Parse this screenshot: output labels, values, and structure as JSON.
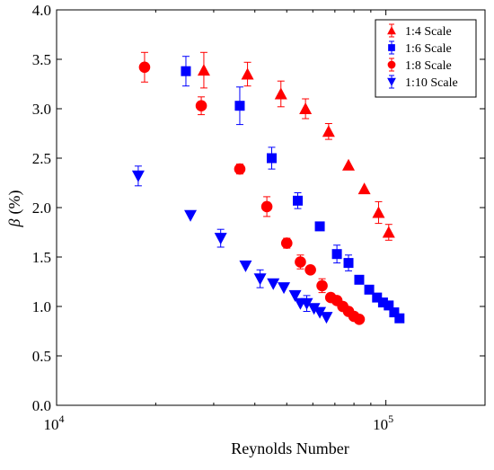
{
  "chart_data": {
    "type": "scatter",
    "xlabel": "Reynolds Number",
    "ylabel_symbol": "β",
    "ylabel_unit": "(%)",
    "xscale": "log",
    "xlim": [
      10000,
      200000
    ],
    "ylim": [
      0,
      4
    ],
    "yticks": [
      0.0,
      0.5,
      1.0,
      1.5,
      2.0,
      2.5,
      3.0,
      3.5,
      4.0
    ],
    "ytick_labels": [
      "0.0",
      "0.5",
      "1.0",
      "1.5",
      "2.0",
      "2.5",
      "3.0",
      "3.5",
      "4.0"
    ],
    "xticks": [
      {
        "value": 10000,
        "base": "10",
        "exp": "4"
      },
      {
        "value": 100000,
        "base": "10",
        "exp": "5"
      }
    ],
    "grid": false,
    "legend_position": "top-right",
    "series": [
      {
        "name": "1:4 Scale",
        "marker": "triangle-up",
        "color": "#ff0000",
        "points": [
          {
            "x": 28000,
            "y": 3.39,
            "err": 0.18
          },
          {
            "x": 38000,
            "y": 3.35,
            "err": 0.12
          },
          {
            "x": 48000,
            "y": 3.15,
            "err": 0.13
          },
          {
            "x": 57000,
            "y": 3.0,
            "err": 0.1
          },
          {
            "x": 67000,
            "y": 2.77,
            "err": 0.08
          },
          {
            "x": 77000,
            "y": 2.43,
            "err": 0.0
          },
          {
            "x": 86000,
            "y": 2.19,
            "err": 0.0
          },
          {
            "x": 95000,
            "y": 1.95,
            "err": 0.11
          },
          {
            "x": 102000,
            "y": 1.75,
            "err": 0.08
          }
        ]
      },
      {
        "name": "1:6 Scale",
        "marker": "square",
        "color": "#0000ff",
        "points": [
          {
            "x": 24700,
            "y": 3.38,
            "err": 0.15
          },
          {
            "x": 36000,
            "y": 3.03,
            "err": 0.19
          },
          {
            "x": 45000,
            "y": 2.5,
            "err": 0.11
          },
          {
            "x": 54000,
            "y": 2.07,
            "err": 0.08
          },
          {
            "x": 63000,
            "y": 1.81,
            "err": 0.0
          },
          {
            "x": 71000,
            "y": 1.53,
            "err": 0.09
          },
          {
            "x": 77000,
            "y": 1.44,
            "err": 0.08
          },
          {
            "x": 83000,
            "y": 1.27,
            "err": 0.0
          },
          {
            "x": 89000,
            "y": 1.17,
            "err": 0.0
          },
          {
            "x": 94000,
            "y": 1.09,
            "err": 0.0
          },
          {
            "x": 98000,
            "y": 1.04,
            "err": 0.0
          },
          {
            "x": 102000,
            "y": 1.01,
            "err": 0.0
          },
          {
            "x": 106000,
            "y": 0.94,
            "err": 0.0
          },
          {
            "x": 110000,
            "y": 0.88,
            "err": 0.0
          }
        ]
      },
      {
        "name": "1:8 Scale",
        "marker": "circle",
        "color": "#ff0000",
        "points": [
          {
            "x": 18500,
            "y": 3.42,
            "err": 0.15
          },
          {
            "x": 27500,
            "y": 3.03,
            "err": 0.09
          },
          {
            "x": 36000,
            "y": 2.39,
            "err": 0.05
          },
          {
            "x": 43500,
            "y": 2.01,
            "err": 0.1
          },
          {
            "x": 50000,
            "y": 1.64,
            "err": 0.05
          },
          {
            "x": 55000,
            "y": 1.45,
            "err": 0.07
          },
          {
            "x": 59000,
            "y": 1.37,
            "err": 0.0
          },
          {
            "x": 64000,
            "y": 1.21,
            "err": 0.07
          },
          {
            "x": 68000,
            "y": 1.09,
            "err": 0.0
          },
          {
            "x": 71000,
            "y": 1.06,
            "err": 0.0
          },
          {
            "x": 74000,
            "y": 1.0,
            "err": 0.0
          },
          {
            "x": 77000,
            "y": 0.95,
            "err": 0.0
          },
          {
            "x": 80000,
            "y": 0.9,
            "err": 0.0
          },
          {
            "x": 83000,
            "y": 0.87,
            "err": 0.0
          }
        ]
      },
      {
        "name": "1:10 Scale",
        "marker": "triangle-down",
        "color": "#0000ff",
        "points": [
          {
            "x": 17700,
            "y": 2.32,
            "err": 0.1
          },
          {
            "x": 25500,
            "y": 1.92,
            "err": 0.0
          },
          {
            "x": 31500,
            "y": 1.69,
            "err": 0.09
          },
          {
            "x": 37500,
            "y": 1.41,
            "err": 0.0
          },
          {
            "x": 41500,
            "y": 1.28,
            "err": 0.09
          },
          {
            "x": 45500,
            "y": 1.23,
            "err": 0.0
          },
          {
            "x": 49000,
            "y": 1.19,
            "err": 0.0
          },
          {
            "x": 53000,
            "y": 1.11,
            "err": 0.0
          },
          {
            "x": 55000,
            "y": 1.03,
            "err": 0.0
          },
          {
            "x": 57500,
            "y": 1.03,
            "err": 0.08
          },
          {
            "x": 60500,
            "y": 0.98,
            "err": 0.0
          },
          {
            "x": 63000,
            "y": 0.94,
            "err": 0.0
          },
          {
            "x": 66000,
            "y": 0.89,
            "err": 0.0
          }
        ]
      }
    ]
  }
}
